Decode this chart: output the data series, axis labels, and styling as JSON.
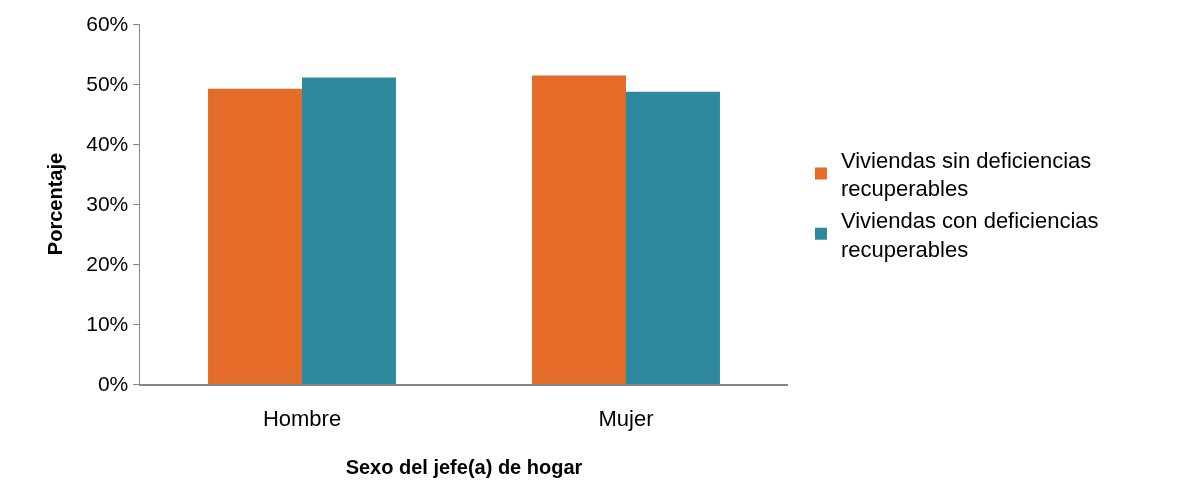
{
  "chart_data": {
    "type": "bar",
    "xlabel": "Sexo del jefe(a) de hogar",
    "ylabel": "Porcentaje",
    "categories": [
      "Hombre",
      "Mujer"
    ],
    "series": [
      {
        "name": "Viviendas sin deficiencias recuperables",
        "color": "#e46c28",
        "values": [
          49.2,
          51.4
        ]
      },
      {
        "name": "Viviendas con deficiencias recuperables",
        "color": "#2e889e",
        "values": [
          51.1,
          48.7
        ]
      }
    ],
    "ylim": [
      0,
      60
    ],
    "yticks": [
      {
        "value": 0,
        "label": "0%"
      },
      {
        "value": 10,
        "label": "10%"
      },
      {
        "value": 20,
        "label": "20%"
      },
      {
        "value": 30,
        "label": "30%"
      },
      {
        "value": 40,
        "label": "40%"
      },
      {
        "value": 50,
        "label": "50%"
      },
      {
        "value": 60,
        "label": "60%"
      }
    ],
    "grid": false,
    "legend": "right"
  }
}
